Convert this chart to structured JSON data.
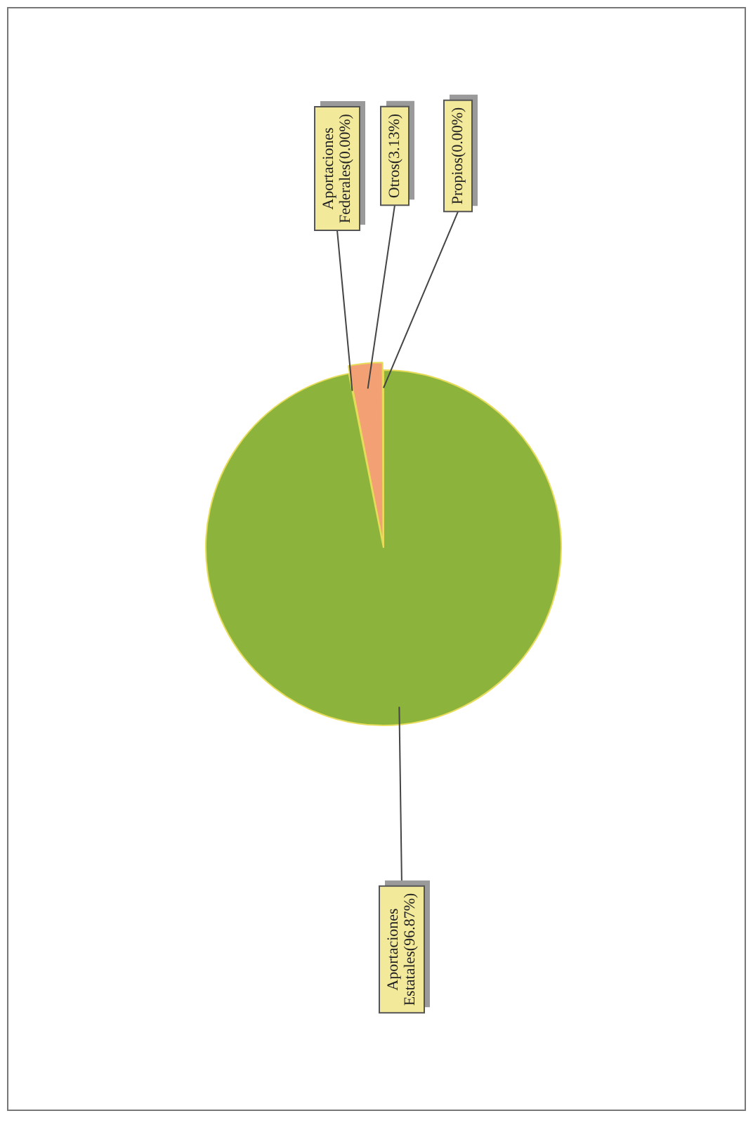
{
  "chart_data": {
    "type": "pie",
    "categories": [
      "Aportaciones Estatales",
      "Aportaciones Federales",
      "Otros",
      "Propios"
    ],
    "values": [
      96.87,
      0,
      3.13,
      0
    ],
    "value_labels": [
      "(96.87%)",
      "(0.00%)",
      "(3.13%)",
      "(0.00%)"
    ],
    "colors": [
      "#8cb43c",
      "#c0504d",
      "#f2a074",
      "#4f81bd"
    ],
    "legend": false
  }
}
